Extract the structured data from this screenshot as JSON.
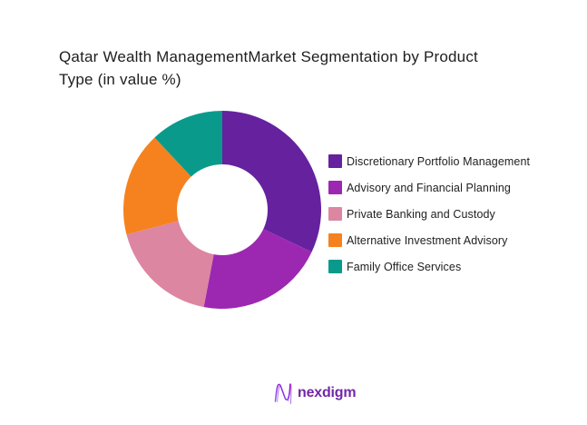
{
  "header": {
    "title_line1": "Qatar Wealth ManagementMarket Segmentation by Product",
    "title_line2": "Type (in value %)"
  },
  "chart_data": {
    "type": "pie",
    "subtype": "donut",
    "title": "Qatar Wealth ManagementMarket Segmentation by Product Type (in value %)",
    "unit": "%",
    "categories": [
      "Discretionary Portfolio Management",
      "Advisory and Financial Planning",
      "Private Banking and Custody",
      "Alternative Investment Advisory",
      "Family Office Services"
    ],
    "values": [
      32,
      21,
      18,
      17,
      12
    ],
    "segments": [
      {
        "label": "Discretionary Portfolio Management",
        "value": 32,
        "color": "#65219E"
      },
      {
        "label": "Advisory and Financial Planning",
        "value": 21,
        "color": "#9C28B1"
      },
      {
        "label": "Private Banking and Custody",
        "value": 18,
        "color": "#DC86A2"
      },
      {
        "label": "Alternative Investment Advisory",
        "value": 17,
        "color": "#F5821F"
      },
      {
        "label": "Family Office Services",
        "value": 12,
        "color": "#0A9A8C"
      }
    ],
    "start_angle_deg": 0,
    "direction": "clockwise",
    "inner_radius_ratio": 0.46,
    "legend_position": "right",
    "data_labels_shown": false,
    "values_estimated_from_arc_angles": true
  },
  "footer": {
    "logo_text": "nexdigm",
    "logo_color": "#7326A8"
  }
}
